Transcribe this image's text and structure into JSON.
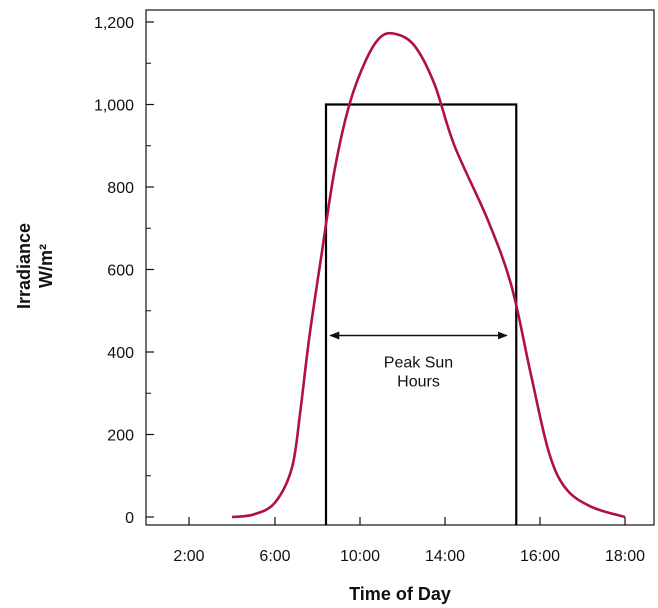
{
  "chart_data": {
    "type": "line",
    "title": "",
    "xlabel": "Time of Day",
    "ylabel_line1": "Irradiance",
    "ylabel_line2": "W/m²",
    "x_ticks": [
      {
        "hour": 2,
        "label": "2:00"
      },
      {
        "hour": 6,
        "label": "6:00"
      },
      {
        "hour": 10,
        "label": "10:00"
      },
      {
        "hour": 14,
        "label": "14:00"
      },
      {
        "hour": 16,
        "label": "16:00"
      },
      {
        "hour": 18,
        "label": "18:00"
      }
    ],
    "y_ticks": [
      {
        "value": 0,
        "label": "0"
      },
      {
        "value": 200,
        "label": "200"
      },
      {
        "value": 400,
        "label": "400"
      },
      {
        "value": 600,
        "label": "600"
      },
      {
        "value": 800,
        "label": "800"
      },
      {
        "value": 1000,
        "label": "1,000"
      },
      {
        "value": 1200,
        "label": "1,200"
      }
    ],
    "ylim": [
      0,
      1200
    ],
    "grid": false,
    "series": [
      {
        "color": "#b0123e",
        "points": [
          [
            4.0,
            0
          ],
          [
            5.0,
            6
          ],
          [
            6.0,
            35
          ],
          [
            6.8,
            120
          ],
          [
            7.2,
            260
          ],
          [
            7.6,
            430
          ],
          [
            8.2,
            640
          ],
          [
            8.8,
            840
          ],
          [
            9.5,
            1000
          ],
          [
            10.3,
            1110
          ],
          [
            11.0,
            1165
          ],
          [
            11.75,
            1170
          ],
          [
            12.6,
            1140
          ],
          [
            13.5,
            1050
          ],
          [
            14.2,
            900
          ],
          [
            14.9,
            720
          ],
          [
            15.4,
            560
          ],
          [
            15.8,
            350
          ],
          [
            16.2,
            160
          ],
          [
            16.6,
            70
          ],
          [
            17.2,
            25
          ],
          [
            18.0,
            0
          ]
        ]
      }
    ],
    "peak_sun_box": {
      "x_start": 8.4,
      "x_end": 15.5,
      "value": 1000,
      "color": "#000000"
    },
    "annotation": {
      "line1": "Peak Sun",
      "line2": "Hours",
      "arrow_x_start": 8.6,
      "arrow_x_end": 15.3,
      "arrow_y": 440
    }
  }
}
